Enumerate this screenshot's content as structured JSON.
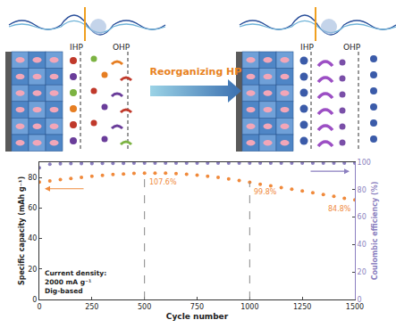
{
  "diagram": {
    "left_panel": {
      "labels": [
        "IHP",
        "OHP"
      ]
    },
    "right_panel": {
      "labels": [
        "IHP",
        "OHP"
      ]
    },
    "arrow": {
      "label": "Reorganizing HP"
    }
  },
  "chart_data": {
    "type": "scatter",
    "x_label": "Cycle number",
    "y_label": "Specific capacity (mAh g⁻¹)",
    "y2_label": "Coulombic efficiency (%)",
    "x": [
      0,
      50,
      100,
      150,
      200,
      250,
      300,
      350,
      400,
      450,
      500,
      550,
      600,
      650,
      700,
      750,
      800,
      850,
      900,
      950,
      1000,
      1050,
      1100,
      1150,
      1200,
      1250,
      1300,
      1350,
      1400,
      1450,
      1500
    ],
    "series": [
      {
        "color": "#f08a3c",
        "marker": "circle",
        "values": [
          77.0,
          77.8,
          78.6,
          79.4,
          80.1,
          80.8,
          81.4,
          81.9,
          82.3,
          82.7,
          82.9,
          82.9,
          82.8,
          82.5,
          82.1,
          81.5,
          80.8,
          80.0,
          79.1,
          78.0,
          76.8,
          75.6,
          74.5,
          73.4,
          72.3,
          71.1,
          70.0,
          68.8,
          67.6,
          66.4,
          65.3
        ]
      },
      {
        "color": "#8b7fc0",
        "marker": "circle",
        "axis": "y2",
        "values": [
          96.0,
          98.6,
          98.9,
          99.0,
          99.1,
          99.1,
          99.2,
          99.2,
          99.2,
          99.3,
          99.3,
          99.3,
          99.3,
          99.3,
          99.3,
          99.3,
          99.4,
          99.4,
          99.4,
          99.4,
          99.4,
          99.4,
          99.4,
          99.4,
          99.4,
          99.4,
          99.4,
          99.4,
          99.4,
          99.4,
          99.4
        ]
      }
    ],
    "xlim": [
      0,
      1500
    ],
    "xticks": [
      0,
      250,
      500,
      750,
      1000,
      1250,
      1500
    ],
    "ylim": [
      0,
      90
    ],
    "yticks": [
      0,
      20,
      40,
      60,
      80
    ],
    "y2lim": [
      0,
      100
    ],
    "y2ticks": [
      0,
      20,
      40,
      60,
      80,
      100
    ],
    "grid": false,
    "annotations": [
      {
        "x": 500,
        "text": "107.6%"
      },
      {
        "x": 1000,
        "text": "99.8%"
      },
      {
        "x": 1500,
        "text": "84.8%"
      }
    ],
    "note": [
      "Current density:",
      "2000 mA g⁻¹",
      "Dig-based"
    ]
  }
}
